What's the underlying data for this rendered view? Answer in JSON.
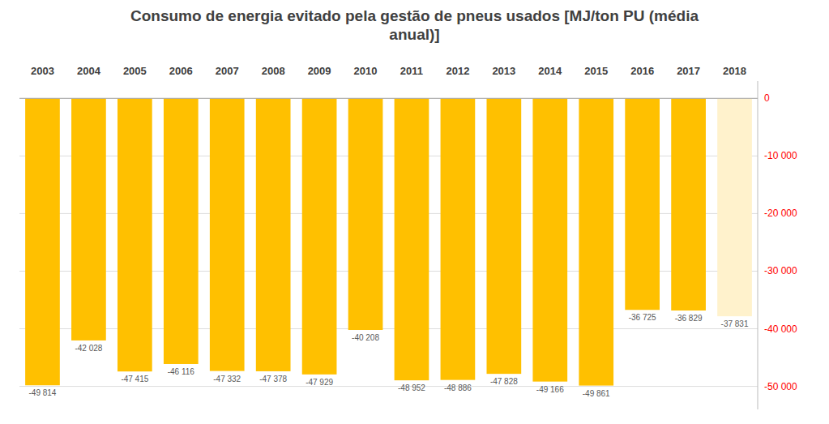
{
  "chart_data": {
    "type": "bar",
    "title": "Consumo de energia evitado pela gestão de pneus usados [MJ/ton PU (média\nanual)]",
    "categories": [
      "2003",
      "2004",
      "2005",
      "2006",
      "2007",
      "2008",
      "2009",
      "2010",
      "2011",
      "2012",
      "2013",
      "2014",
      "2015",
      "2016",
      "2017",
      "2018"
    ],
    "values": [
      -49814,
      -42028,
      -47415,
      -46116,
      -47332,
      -47378,
      -47929,
      -40208,
      -48952,
      -48886,
      -47828,
      -49166,
      -49861,
      -36725,
      -36829,
      -37831
    ],
    "value_labels": [
      "-49 814",
      "-42 028",
      "-47 415",
      "-46 116",
      "-47 332",
      "-47 378",
      "-47 929",
      "-40 208",
      "-48 952",
      "-48 886",
      "-47 828",
      "-49 166",
      "-49 861",
      "-36 725",
      "-36 829",
      "-37 831"
    ],
    "colors": [
      "#FFC000",
      "#FFC000",
      "#FFC000",
      "#FFC000",
      "#FFC000",
      "#FFC000",
      "#FFC000",
      "#FFC000",
      "#FFC000",
      "#FFC000",
      "#FFC000",
      "#FFC000",
      "#FFC000",
      "#FFC000",
      "#FFC000",
      "#FFF2CC"
    ],
    "data_labels": true,
    "ylim": [
      -54000,
      3000
    ],
    "yticks": [
      0,
      {
        "value": -10000,
        "label": "-10 000"
      },
      {
        "value": -20000,
        "label": "-20 000"
      },
      {
        "value": -30000,
        "label": "-30 000"
      },
      {
        "value": -40000,
        "label": "-40 000"
      },
      {
        "value": -50000,
        "label": "-50 000"
      }
    ],
    "grid": true
  }
}
